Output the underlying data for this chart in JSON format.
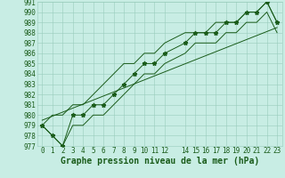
{
  "title": "Graphe pression niveau de la mer (hPa)",
  "x_values": [
    0,
    1,
    2,
    3,
    4,
    5,
    6,
    7,
    8,
    9,
    10,
    11,
    12,
    14,
    15,
    16,
    17,
    18,
    19,
    20,
    21,
    22,
    23
  ],
  "y_values": [
    979,
    978,
    977,
    980,
    980,
    981,
    981,
    982,
    983,
    984,
    985,
    985,
    986,
    987,
    988,
    988,
    988,
    989,
    989,
    990,
    990,
    991,
    989
  ],
  "trend_x": [
    0,
    23
  ],
  "trend_y": [
    979.5,
    988.5
  ],
  "envelope_upper_x": [
    0,
    1,
    2,
    3,
    4,
    5,
    6,
    7,
    8,
    9,
    10,
    11,
    12,
    14,
    15,
    16,
    17,
    18,
    19,
    20,
    21,
    22,
    23
  ],
  "envelope_upper_y": [
    979,
    980,
    980,
    981,
    981,
    982,
    983,
    984,
    985,
    985,
    986,
    986,
    987,
    988,
    988,
    988,
    989,
    989,
    989,
    990,
    990,
    991,
    989
  ],
  "envelope_lower_x": [
    0,
    1,
    2,
    3,
    4,
    5,
    6,
    7,
    8,
    9,
    10,
    11,
    12,
    14,
    15,
    16,
    17,
    18,
    19,
    20,
    21,
    22,
    23
  ],
  "envelope_lower_y": [
    979,
    978,
    977,
    979,
    979,
    980,
    980,
    981,
    982,
    983,
    984,
    984,
    985,
    986,
    987,
    987,
    987,
    988,
    988,
    989,
    989,
    990,
    988
  ],
  "ylim_min": 977,
  "ylim_max": 991,
  "xlim_min": -0.5,
  "xlim_max": 23.5,
  "yticks": [
    977,
    978,
    979,
    980,
    981,
    982,
    983,
    984,
    985,
    986,
    987,
    988,
    989,
    990,
    991
  ],
  "xticks": [
    0,
    1,
    2,
    3,
    4,
    5,
    6,
    7,
    8,
    9,
    10,
    11,
    12,
    14,
    15,
    16,
    17,
    18,
    19,
    20,
    21,
    22,
    23
  ],
  "xtick_labels": [
    "0",
    "1",
    "2",
    "3",
    "4",
    "5",
    "6",
    "7",
    "8",
    "9",
    "10",
    "11",
    "12",
    "14",
    "15",
    "16",
    "17",
    "18",
    "19",
    "20",
    "21",
    "22",
    "23"
  ],
  "bg_color": "#c8ede4",
  "grid_color": "#98ccbc",
  "line_color": "#1a5c1a",
  "marker_color": "#1a5c1a",
  "title_color": "#1a5c1a",
  "font_size_axis": 5.5,
  "font_size_title": 7.0,
  "marker": "*",
  "marker_size": 3.5,
  "line_width": 0.7
}
